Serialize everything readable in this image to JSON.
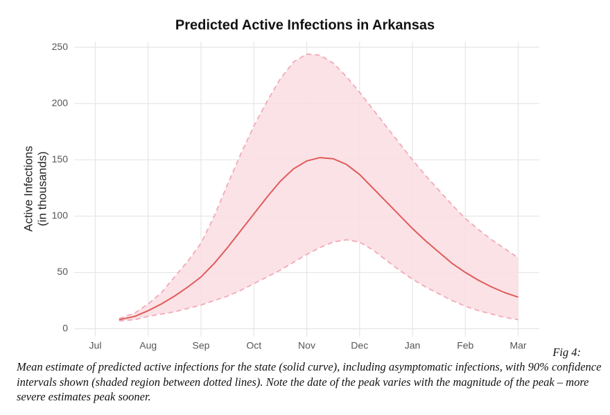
{
  "chart_data": {
    "type": "line",
    "title": "Predicted Active Infections in Arkansas",
    "ylabel": [
      "Active Infections",
      "(in thousands)"
    ],
    "x": [
      7.45,
      7.75,
      8.0,
      8.25,
      8.5,
      8.75,
      9.0,
      9.25,
      9.5,
      9.75,
      10.0,
      10.25,
      10.5,
      10.75,
      11.0,
      11.25,
      11.5,
      11.75,
      12.0,
      12.25,
      12.5,
      12.75,
      13.0,
      13.25,
      13.5,
      13.75,
      14.0,
      14.25,
      14.5,
      14.75,
      15.0
    ],
    "series": [
      {
        "color": "#e05a5a",
        "values": [
          8,
          11,
          16,
          22,
          29,
          37,
          46,
          58,
          72,
          87,
          102,
          117,
          131,
          142,
          149,
          152,
          151,
          146,
          137,
          125,
          113,
          101,
          89,
          78,
          68,
          58,
          50,
          43,
          37,
          32,
          28
        ]
      }
    ],
    "band": {
      "color": "#fadde2",
      "line_color": "#f2a9b8",
      "upper": [
        9,
        14,
        22,
        32,
        46,
        60,
        76,
        100,
        128,
        155,
        180,
        202,
        222,
        237,
        244,
        243,
        236,
        224,
        210,
        195,
        180,
        165,
        150,
        136,
        123,
        110,
        98,
        88,
        79,
        71,
        63
      ],
      "lower": [
        7,
        8,
        11,
        13,
        15,
        18,
        21,
        25,
        29,
        34,
        40,
        46,
        52,
        59,
        66,
        72,
        77,
        79,
        77,
        70,
        61,
        52,
        44,
        37,
        31,
        25,
        20,
        16,
        13,
        10,
        8
      ]
    },
    "xlim": [
      6.6,
      15.4
    ],
    "xticks": [
      {
        "value": 7,
        "label": "Jul"
      },
      {
        "value": 8,
        "label": "Aug"
      },
      {
        "value": 9,
        "label": "Sep"
      },
      {
        "value": 10,
        "label": "Oct"
      },
      {
        "value": 11,
        "label": "Nov"
      },
      {
        "value": 12,
        "label": "Dec"
      },
      {
        "value": 13,
        "label": "Jan"
      },
      {
        "value": 14,
        "label": "Feb"
      },
      {
        "value": 15,
        "label": "Mar"
      }
    ],
    "ylim": [
      -7,
      255
    ],
    "yticks": [
      0,
      50,
      100,
      150,
      200,
      250
    ],
    "grid": true
  },
  "caption_label": "Fig 4:",
  "caption": "Mean estimate of predicted active infections for the state (solid curve), including asymptomatic infections, with 90% confidence intervals shown (shaded region between dotted lines).  Note the date of the peak varies with the magnitude of the peak – more severe estimates peak sooner."
}
